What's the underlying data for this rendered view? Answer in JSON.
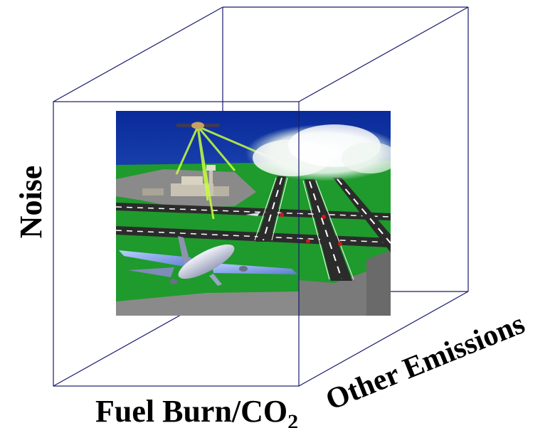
{
  "axes": {
    "vertical": "Noise",
    "horizontal_main": "Fuel Burn/CO",
    "horizontal_subscript": "2",
    "depth": "Other Emissions"
  },
  "colors": {
    "cube_edge": "#1a1a6e",
    "sky_top": "#0a2a9a",
    "sky_bottom": "#3a78d8",
    "grass": "#1f9a2c",
    "runway": "#2b2b2b",
    "tarmac": "#7a7a7a",
    "signal_beam": "#c8ff3c",
    "cloud": "#f4f8f4"
  },
  "illustration": {
    "description_icons": [
      "satellite-icon",
      "airplane-icon",
      "control-tower-icon",
      "cloud-icon"
    ]
  }
}
